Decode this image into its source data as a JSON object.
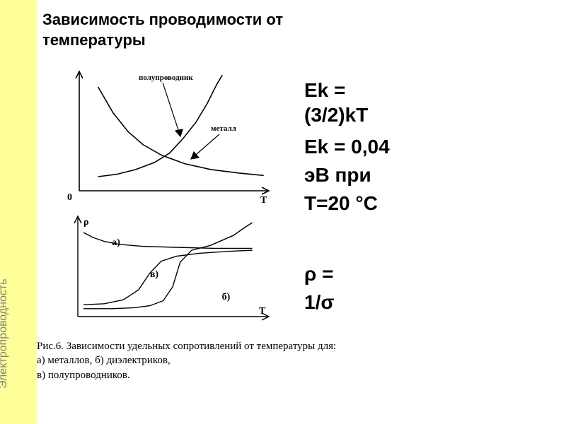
{
  "sidebar": {
    "label": "Электропроводность",
    "bg_color": "#ffff99",
    "text_color": "#808080"
  },
  "title": "Зависимость проводимости от температуры",
  "chart1": {
    "type": "line",
    "xlim": [
      0,
      100
    ],
    "ylim": [
      0,
      100
    ],
    "axis_color": "#000000",
    "line_width": 1.6,
    "origin_label": "0",
    "x_label": "T",
    "curves": {
      "semiconductor": {
        "label": "полупроводник",
        "points": [
          [
            10,
            12
          ],
          [
            20,
            14
          ],
          [
            30,
            18
          ],
          [
            40,
            24
          ],
          [
            48,
            32
          ],
          [
            55,
            44
          ],
          [
            62,
            58
          ],
          [
            68,
            74
          ],
          [
            73,
            90
          ],
          [
            76,
            98
          ]
        ],
        "arrow_from": [
          45,
          0
        ],
        "arrow_to": [
          56,
          42
        ]
      },
      "metal": {
        "label": "металл",
        "points": [
          [
            10,
            88
          ],
          [
            18,
            66
          ],
          [
            26,
            50
          ],
          [
            34,
            39
          ],
          [
            44,
            30
          ],
          [
            56,
            23
          ],
          [
            70,
            18
          ],
          [
            85,
            15
          ],
          [
            98,
            13
          ]
        ],
        "arrow_from": [
          78,
          56
        ],
        "arrow_to": [
          59,
          27
        ]
      }
    }
  },
  "chart2": {
    "type": "line",
    "xlim": [
      0,
      100
    ],
    "ylim": [
      0,
      100
    ],
    "axis_color": "#000000",
    "line_width": 1.4,
    "y_axis_label": "ρ",
    "x_axis_label": "T",
    "curves": {
      "a": {
        "label": "а)",
        "label_pos": [
          18,
          72
        ],
        "points": [
          [
            3,
            85
          ],
          [
            8,
            80
          ],
          [
            14,
            76
          ],
          [
            22,
            73
          ],
          [
            34,
            71
          ],
          [
            52,
            70
          ],
          [
            72,
            69
          ],
          [
            92,
            69
          ]
        ]
      },
      "b": {
        "label": "б)",
        "label_pos": [
          76,
          17
        ],
        "points": [
          [
            3,
            8
          ],
          [
            18,
            8
          ],
          [
            30,
            9
          ],
          [
            38,
            11
          ],
          [
            45,
            16
          ],
          [
            50,
            30
          ],
          [
            54,
            55
          ],
          [
            60,
            67
          ],
          [
            70,
            72
          ],
          [
            82,
            82
          ],
          [
            88,
            90
          ],
          [
            92,
            95
          ]
        ]
      },
      "v": {
        "label": "в)",
        "label_pos": [
          38,
          40
        ],
        "points": [
          [
            3,
            12
          ],
          [
            14,
            13
          ],
          [
            24,
            17
          ],
          [
            32,
            27
          ],
          [
            38,
            44
          ],
          [
            44,
            56
          ],
          [
            52,
            61
          ],
          [
            64,
            64
          ],
          [
            80,
            66
          ],
          [
            92,
            67
          ]
        ]
      }
    }
  },
  "caption": {
    "line1": "Рис.6. Зависимости удельных сопротивлений от температуры для:",
    "line2": "а) металлов, б) диэлектриков,",
    "line3": "в) полупроводников."
  },
  "formulas": {
    "f1": " Ek =",
    "f1b": "(3/2)kT",
    "f2": " Ek = 0,04",
    "f3": "эВ при",
    "f4": "T=20 °С",
    "f5": " ρ =",
    "f6": "1/σ"
  }
}
